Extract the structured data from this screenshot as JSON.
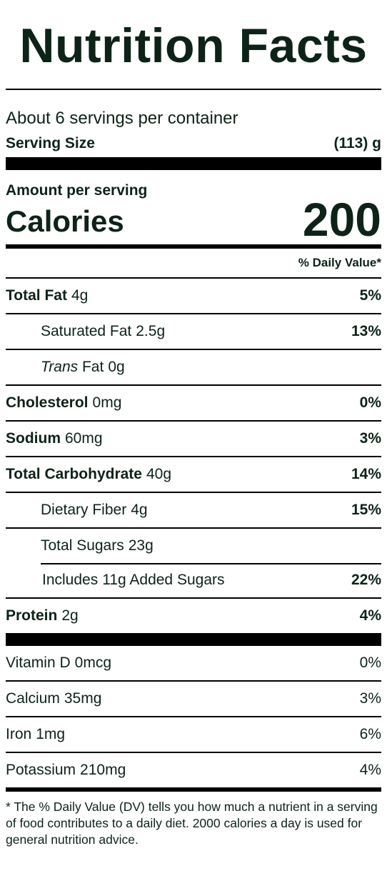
{
  "title": "Nutrition Facts",
  "servings_per_container": "About 6 servings per container",
  "serving_size": {
    "label": "Serving Size",
    "value": "(113) g"
  },
  "amount_per_serving": "Amount per serving",
  "calories": {
    "label": "Calories",
    "value": "200"
  },
  "daily_value_header": "% Daily Value*",
  "nutrients": [
    {
      "name": "Total Fat",
      "amount": "4g",
      "dv": "5%"
    },
    {
      "name": "Saturated Fat",
      "amount": "2.5g",
      "dv": "13%"
    },
    {
      "name_italic": "Trans",
      "name": "Fat",
      "amount": "0g",
      "dv": ""
    },
    {
      "name": "Cholesterol",
      "amount": "0mg",
      "dv": "0%"
    },
    {
      "name": "Sodium",
      "amount": "60mg",
      "dv": "3%"
    },
    {
      "name": "Total Carbohydrate",
      "amount": "40g",
      "dv": "14%"
    },
    {
      "name": "Dietary Fiber",
      "amount": "4g",
      "dv": "15%"
    },
    {
      "name": "Total Sugars",
      "amount": "23g",
      "dv": ""
    },
    {
      "prefix": "Includes",
      "amount": "11g",
      "name": "Added Sugars",
      "dv": "22%"
    },
    {
      "name": "Protein",
      "amount": "2g",
      "dv": "4%"
    }
  ],
  "vitamins": [
    {
      "name": "Vitamin D",
      "amount": "0mcg",
      "dv": "0%"
    },
    {
      "name": "Calcium",
      "amount": "35mg",
      "dv": "3%"
    },
    {
      "name": "Iron",
      "amount": "1mg",
      "dv": "6%"
    },
    {
      "name": "Potassium",
      "amount": "210mg",
      "dv": "4%"
    }
  ],
  "footnote": "* The % Daily Value (DV) tells you how much a nutrient in a serving of food contributes to a daily diet. 2000 calories a day is used for general nutrition advice."
}
